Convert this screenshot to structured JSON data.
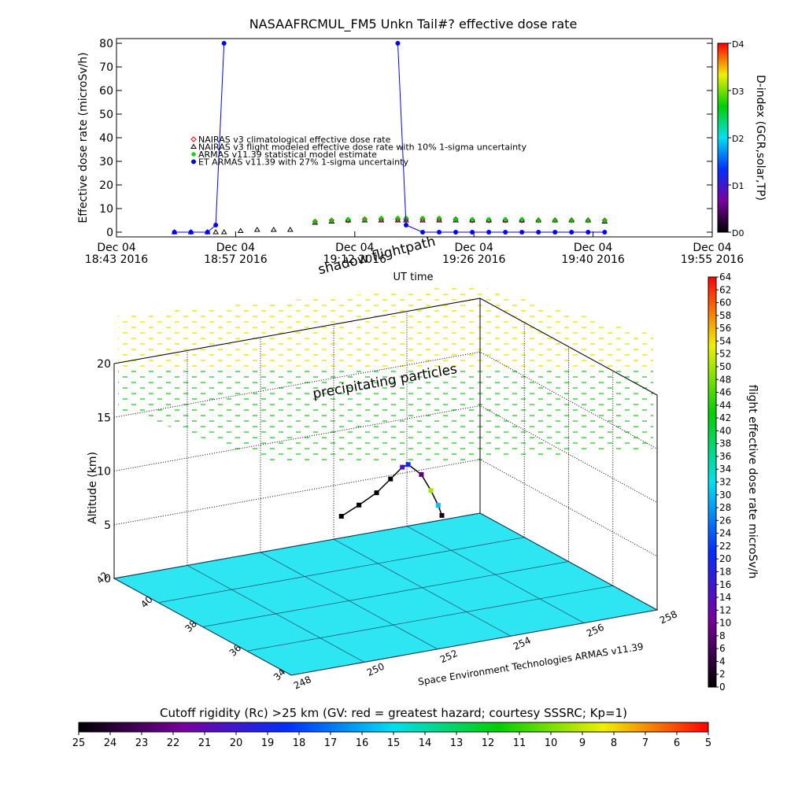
{
  "chart_data": [
    {
      "type": "scatter",
      "title": "NASAAFRCMUL_FM5 Unkn Tail#? effective dose rate",
      "ylabel": "Effective dose rate (microSv/h)",
      "xlabel": "UT time",
      "x": [
        "18:50",
        "18:52",
        "18:54",
        "18:55",
        "18:56",
        "18:58",
        "19:00",
        "19:02",
        "19:04",
        "19:07",
        "19:09",
        "19:11",
        "19:13",
        "19:15",
        "19:17",
        "19:18",
        "19:20",
        "19:22",
        "19:24",
        "19:26",
        "19:28",
        "19:30",
        "19:32",
        "19:34",
        "19:36",
        "19:38",
        "19:40",
        "19:42"
      ],
      "xlim": [
        "18:43:00",
        "19:55:00"
      ],
      "xticks": [
        {
          "value": "18:43:00",
          "label": [
            "Dec 04",
            "18:43 2016"
          ]
        },
        {
          "value": "18:57:24",
          "label": [
            "Dec 04",
            "18:57 2016"
          ]
        },
        {
          "value": "19:11:48",
          "label": [
            "Dec 04",
            "19:12 2016"
          ]
        },
        {
          "value": "19:26:12",
          "label": [
            "Dec 04",
            "19:26 2016"
          ]
        },
        {
          "value": "19:40:36",
          "label": [
            "Dec 04",
            "19:40 2016"
          ]
        },
        {
          "value": "19:55:00",
          "label": [
            "Dec 04",
            "19:55 2016"
          ]
        }
      ],
      "ylim": [
        -2,
        82
      ],
      "yticks": [
        0,
        10,
        20,
        30,
        40,
        50,
        60,
        70,
        80
      ],
      "series": [
        {
          "name": "NAIRAS v3 climatological effective dose rate",
          "color": "#ff0000",
          "marker": "diamond",
          "values": [
            null,
            null,
            null,
            null,
            null,
            null,
            null,
            null,
            null,
            4.5,
            5,
            5,
            5.5,
            5.5,
            5.5,
            5.5,
            5.5,
            5.5,
            5.5,
            5,
            5,
            5,
            5,
            5,
            5,
            5,
            5,
            5
          ]
        },
        {
          "name": "NAIRAS v3 flight modeled effective dose rate with 10% 1-sigma uncertainty",
          "color": "#000000",
          "marker": "triangle",
          "values": [
            0,
            0,
            0,
            0,
            0,
            0.5,
            1,
            1,
            1,
            4,
            4.5,
            5,
            5,
            5,
            5,
            5,
            5,
            5,
            5,
            5,
            5,
            5,
            5,
            5,
            5,
            5,
            5,
            4.5
          ]
        },
        {
          "name": "ARMAS v11.39 statistical model estimate",
          "color": "#00cc00",
          "marker": "asterisk",
          "values": [
            null,
            null,
            null,
            null,
            null,
            null,
            null,
            null,
            null,
            4.5,
            5,
            5.5,
            5.5,
            6,
            6,
            6,
            6,
            6,
            5.5,
            5.5,
            5.5,
            5.5,
            5.5,
            5,
            5,
            5,
            5,
            5
          ]
        },
        {
          "name": "ET ARMAS v11.39 with 27% 1-sigma uncertainty",
          "color": "#0000ff",
          "marker": "circle",
          "values": [
            0,
            0,
            0,
            3,
            80,
            null,
            null,
            null,
            null,
            null,
            null,
            null,
            null,
            null,
            80,
            3,
            0,
            0,
            0,
            0,
            0,
            0,
            0,
            0,
            0,
            0,
            0,
            0
          ]
        }
      ],
      "colorbar": {
        "label": "D-index (GCR,solar,TP)",
        "lim": [
          0,
          4
        ],
        "ticks": [
          {
            "value": 0,
            "label": "D0"
          },
          {
            "value": 1,
            "label": "D1"
          },
          {
            "value": 2,
            "label": "D2"
          },
          {
            "value": 3,
            "label": "D3"
          },
          {
            "value": 4,
            "label": "D4"
          }
        ],
        "colors": [
          "#000000",
          "#7a00a0",
          "#0030ff",
          "#00e0f0",
          "#00d000",
          "#f0f000",
          "#ff0000"
        ]
      }
    },
    {
      "type": "scatter3d",
      "annotations": [
        "shadow flightpath",
        "precipitating particles"
      ],
      "credit": "Space Environment Technologies ARMAS v11.39",
      "zlabel": "Altitude (km)",
      "xlim": [
        248,
        258
      ],
      "xticks": [
        248,
        250,
        252,
        254,
        256,
        258
      ],
      "ylim": [
        34,
        42
      ],
      "yticks": [
        34,
        36,
        38,
        40,
        42
      ],
      "zlim": [
        0,
        20
      ],
      "zticks": [
        0,
        5,
        10,
        15,
        20
      ],
      "lon": [
        253.0,
        253.3,
        253.6,
        253.8,
        254.0,
        254.1,
        254.4,
        254.6,
        254.8,
        254.9
      ],
      "lat": [
        40.0,
        39.7,
        39.4,
        39.1,
        38.9,
        38.8,
        38.7,
        38.6,
        38.6,
        38.6
      ],
      "alt": [
        5.0,
        6.2,
        7.5,
        9.0,
        10.2,
        10.5,
        9.5,
        8.0,
        6.5,
        5.5
      ],
      "dose": [
        0,
        0,
        0,
        0,
        15,
        20,
        8,
        50,
        30,
        2
      ],
      "colorbar": {
        "label": "flight effective dose rate microSv/h",
        "lim": [
          0,
          64
        ],
        "ticks": [
          0,
          2,
          4,
          6,
          8,
          10,
          12,
          14,
          16,
          18,
          20,
          22,
          24,
          26,
          28,
          30,
          32,
          34,
          36,
          38,
          40,
          42,
          44,
          46,
          48,
          50,
          52,
          54,
          56,
          58,
          60,
          62,
          64
        ],
        "colors": [
          "#000000",
          "#7a00a0",
          "#0030ff",
          "#00e0f0",
          "#00d000",
          "#f0f000",
          "#ff0000"
        ]
      }
    },
    {
      "type": "colorbar",
      "label": "Cutoff rigidity (Rc) >25 km (GV: red = greatest hazard; courtesy SSSRC; Kp=1)",
      "xlim": [
        25,
        5
      ],
      "xticks": [
        25,
        24,
        23,
        22,
        21,
        20,
        19,
        18,
        17,
        16,
        15,
        14,
        13,
        12,
        11,
        10,
        9,
        8,
        7,
        6,
        5
      ],
      "colors": [
        "#000000",
        "#7a00a0",
        "#0030ff",
        "#00e0f0",
        "#00d000",
        "#f0f000",
        "#ff0000"
      ]
    }
  ]
}
